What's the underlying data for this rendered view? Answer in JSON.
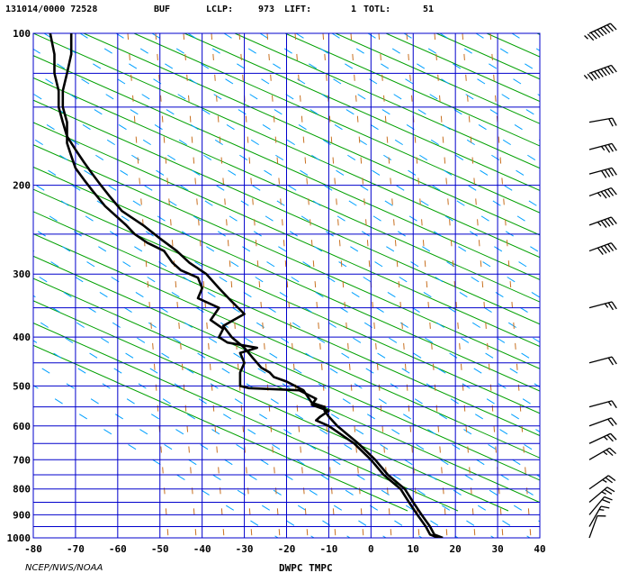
{
  "header": {
    "station_time": "131014/0000 72528",
    "station_id": "BUF",
    "lclp_label": "LCLP:",
    "lclp_value": "973",
    "lift_label": "LIFT:",
    "lift_value": "1",
    "totl_label": "TOTL:",
    "totl_value": "51"
  },
  "footer": {
    "credit": "NCEP/NWS/NOAA",
    "xlabel": "DWPC TMPC"
  },
  "colors": {
    "grid": "#0000cc",
    "dry_adiabat": "#00a000",
    "mixing_ratio": "#00a0ff",
    "moist_adiabat": "#c87020",
    "profile": "#000000"
  },
  "chart_data": {
    "type": "line",
    "title": "",
    "xlabel": "DWPC TMPC",
    "ylabel": "",
    "xlim": [
      -80,
      40
    ],
    "ylim": [
      1000,
      100
    ],
    "x_ticks": [
      "-80",
      "-70",
      "-60",
      "-50",
      "-40",
      "-30",
      "-20",
      "-10",
      "0",
      "10",
      "20",
      "30",
      "40"
    ],
    "y_ticks": [
      "100",
      "200",
      "300",
      "400",
      "500",
      "600",
      "700",
      "800",
      "900",
      "1000"
    ],
    "y_scale": "log-pressure (hPa)",
    "grid": true,
    "series": [
      {
        "name": "TMPC",
        "points": [
          [
            17,
            1000
          ],
          [
            15,
            985
          ],
          [
            14,
            950
          ],
          [
            12,
            900
          ],
          [
            10,
            850
          ],
          [
            8,
            800
          ],
          [
            4,
            750
          ],
          [
            1,
            700
          ],
          [
            -3,
            650
          ],
          [
            -8,
            600
          ],
          [
            -10,
            575
          ],
          [
            -11,
            560
          ],
          [
            -11,
            550
          ],
          [
            -14,
            540
          ],
          [
            -15,
            525
          ],
          [
            -16,
            510
          ],
          [
            -20,
            490
          ],
          [
            -23,
            480
          ],
          [
            -24,
            470
          ],
          [
            -26,
            460
          ],
          [
            -28,
            440
          ],
          [
            -30,
            420
          ],
          [
            -33,
            400
          ],
          [
            -35,
            380
          ],
          [
            -30,
            360
          ],
          [
            -33,
            340
          ],
          [
            -36,
            320
          ],
          [
            -39,
            300
          ],
          [
            -43,
            285
          ],
          [
            -46,
            270
          ],
          [
            -50,
            255
          ],
          [
            -54,
            240
          ],
          [
            -59,
            225
          ],
          [
            -62,
            210
          ],
          [
            -64,
            200
          ],
          [
            -66,
            190
          ],
          [
            -68,
            180
          ],
          [
            -70,
            170
          ],
          [
            -72,
            160
          ],
          [
            -73,
            150
          ],
          [
            -74,
            140
          ],
          [
            -74,
            130
          ],
          [
            -75,
            120
          ],
          [
            -75,
            110
          ],
          [
            -76,
            100
          ]
        ]
      },
      {
        "name": "DWPC",
        "points": [
          [
            16,
            1000
          ],
          [
            14,
            985
          ],
          [
            13,
            950
          ],
          [
            11,
            900
          ],
          [
            9,
            850
          ],
          [
            7,
            800
          ],
          [
            3,
            750
          ],
          [
            0,
            700
          ],
          [
            -4,
            650
          ],
          [
            -10,
            600
          ],
          [
            -13,
            585
          ],
          [
            -12,
            575
          ],
          [
            -10,
            560
          ],
          [
            -14,
            545
          ],
          [
            -13,
            530
          ],
          [
            -17,
            510
          ],
          [
            -29,
            505
          ],
          [
            -31,
            500
          ],
          [
            -31,
            470
          ],
          [
            -30,
            450
          ],
          [
            -31,
            430
          ],
          [
            -27,
            420
          ],
          [
            -34,
            410
          ],
          [
            -36,
            400
          ],
          [
            -35,
            385
          ],
          [
            -38,
            370
          ],
          [
            -36,
            350
          ],
          [
            -41,
            335
          ],
          [
            -40,
            320
          ],
          [
            -41,
            305
          ],
          [
            -45,
            295
          ],
          [
            -47,
            285
          ],
          [
            -49,
            270
          ],
          [
            -53,
            260
          ],
          [
            -56,
            250
          ],
          [
            -58,
            240
          ],
          [
            -63,
            220
          ],
          [
            -66,
            205
          ],
          [
            -68,
            195
          ],
          [
            -70,
            185
          ],
          [
            -71,
            175
          ],
          [
            -72,
            165
          ],
          [
            -72,
            150
          ],
          [
            -73,
            140
          ],
          [
            -73,
            130
          ],
          [
            -72,
            120
          ],
          [
            -71,
            110
          ],
          [
            -71,
            100
          ]
        ]
      }
    ],
    "wind_barbs": [
      {
        "pressure": 100,
        "direction": 245,
        "speed": 105
      },
      {
        "pressure": 120,
        "direction": 250,
        "speed": 100
      },
      {
        "pressure": 150,
        "direction": 260,
        "speed": 20
      },
      {
        "pressure": 170,
        "direction": 255,
        "speed": 35
      },
      {
        "pressure": 190,
        "direction": 255,
        "speed": 40
      },
      {
        "pressure": 210,
        "direction": 250,
        "speed": 45
      },
      {
        "pressure": 240,
        "direction": 250,
        "speed": 45
      },
      {
        "pressure": 270,
        "direction": 250,
        "speed": 50
      },
      {
        "pressure": 350,
        "direction": 255,
        "speed": 25
      },
      {
        "pressure": 450,
        "direction": 255,
        "speed": 20
      },
      {
        "pressure": 550,
        "direction": 255,
        "speed": 15
      },
      {
        "pressure": 600,
        "direction": 250,
        "speed": 20
      },
      {
        "pressure": 650,
        "direction": 245,
        "speed": 25
      },
      {
        "pressure": 700,
        "direction": 240,
        "speed": 25
      },
      {
        "pressure": 800,
        "direction": 235,
        "speed": 25
      },
      {
        "pressure": 850,
        "direction": 230,
        "speed": 25
      },
      {
        "pressure": 900,
        "direction": 220,
        "speed": 20
      },
      {
        "pressure": 950,
        "direction": 210,
        "speed": 15
      },
      {
        "pressure": 1000,
        "direction": 200,
        "speed": 10
      }
    ]
  }
}
